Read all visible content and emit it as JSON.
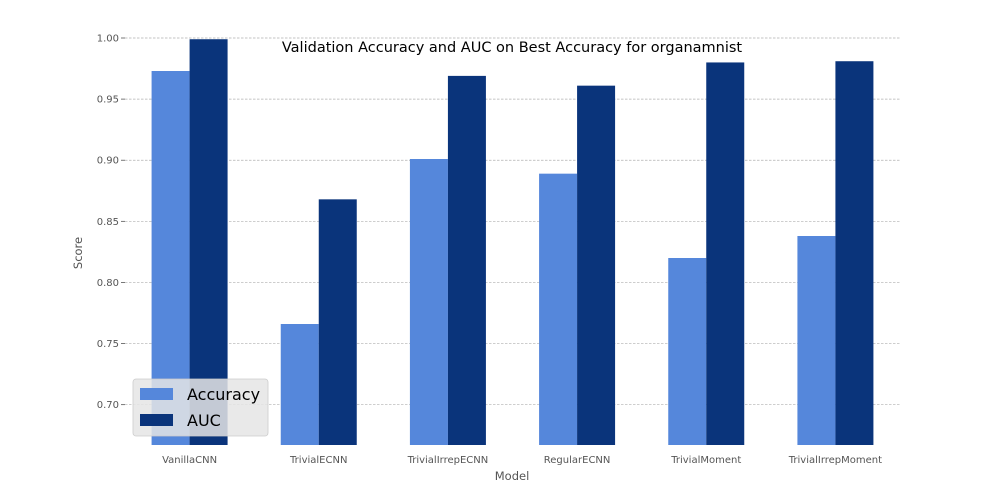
{
  "chart_data": {
    "type": "bar",
    "title": "Validation Accuracy and AUC on Best Accuracy for organamnist",
    "xlabel": "Model",
    "ylabel": "Score",
    "ylim": [
      0.667,
      1.0
    ],
    "yticks": [
      "0.70",
      "0.75",
      "0.80",
      "0.85",
      "0.90",
      "0.95",
      "1.00"
    ],
    "grid": "y",
    "legend_position": "lower-left",
    "categories": [
      "VanillaCNN",
      "TrivialECNN",
      "TrivialIrrepECNN",
      "RegularECNN",
      "TrivialMoment",
      "TrivialIrrepMoment"
    ],
    "series": [
      {
        "name": "Accuracy",
        "color": "#5587db",
        "values": [
          0.973,
          0.766,
          0.901,
          0.889,
          0.82,
          0.838
        ]
      },
      {
        "name": "AUC",
        "color": "#0a347b",
        "values": [
          0.999,
          0.868,
          0.969,
          0.961,
          0.98,
          0.981
        ]
      }
    ]
  }
}
